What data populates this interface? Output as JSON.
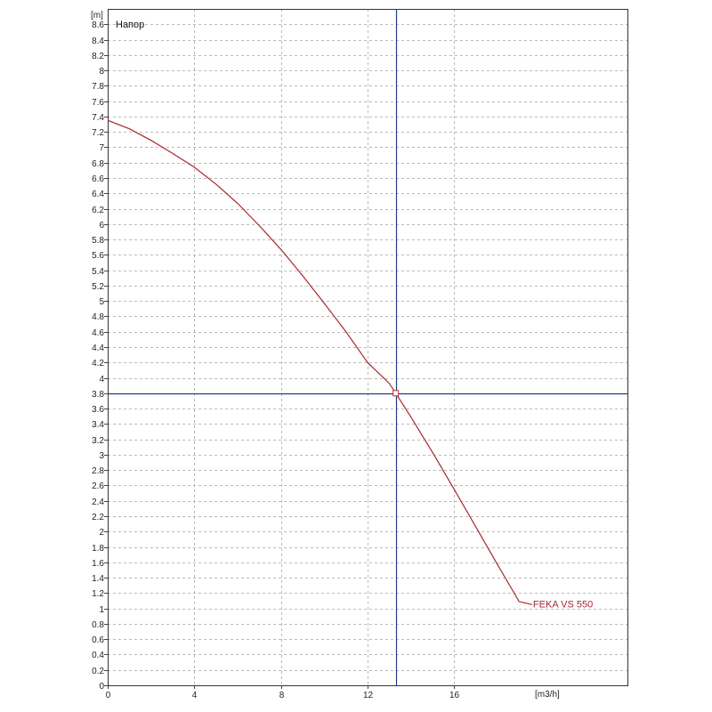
{
  "chart_data": {
    "type": "line",
    "title": "Напор",
    "ylabel": "[m]",
    "xlabel": "[m3/h]",
    "xlim": [
      0,
      24
    ],
    "ylim": [
      0,
      8.8
    ],
    "x_ticks": [
      0,
      4,
      8,
      12,
      16
    ],
    "x_tick_labels": [
      "0",
      "4",
      "8",
      "12",
      "16"
    ],
    "y_ticks": [
      0,
      0.2,
      0.4,
      0.6,
      0.8,
      1,
      1.2,
      1.4,
      1.6,
      1.8,
      2,
      2.2,
      2.4,
      2.6,
      2.8,
      3,
      3.2,
      3.4,
      3.6,
      3.8,
      4,
      4.2,
      4.4,
      4.6,
      4.8,
      5,
      5.2,
      5.4,
      5.6,
      5.8,
      6,
      6.2,
      6.4,
      6.6,
      6.8,
      7,
      7.2,
      7.4,
      7.6,
      7.8,
      8,
      8.2,
      8.4,
      8.6
    ],
    "y_tick_labels": [
      "0",
      "0.2",
      "0.4",
      "0.6",
      "0.8",
      "1",
      "1.2",
      "1.4",
      "1.6",
      "1.8",
      "2",
      "2.2",
      "2.4",
      "2.6",
      "2.8",
      "3",
      "3.2",
      "3.4",
      "3.6",
      "3.8",
      "4",
      "4.2",
      "4.4",
      "4.6",
      "4.8",
      "5",
      "5.2",
      "5.4",
      "5.6",
      "5.8",
      "6",
      "6.2",
      "6.4",
      "6.6",
      "6.8",
      "7",
      "7.2",
      "7.4",
      "7.6",
      "7.8",
      "8",
      "8.2",
      "8.4",
      "8.6"
    ],
    "grid": true,
    "series": [
      {
        "name": "FEKA VS 550",
        "color": "#a8272d",
        "x": [
          0,
          1,
          2,
          3,
          4,
          5,
          6,
          7,
          8,
          9,
          10,
          11,
          12,
          13,
          13.3,
          14,
          15,
          16,
          17,
          18,
          19,
          19.6
        ],
        "y": [
          7.35,
          7.24,
          7.09,
          6.92,
          6.74,
          6.52,
          6.27,
          5.98,
          5.67,
          5.33,
          4.97,
          4.6,
          4.2,
          3.93,
          3.8,
          3.49,
          3.03,
          2.55,
          2.06,
          1.57,
          1.09,
          1.05
        ]
      }
    ],
    "crosshair": {
      "x": 13.3,
      "y": 3.8,
      "color": "#1f3b8c"
    },
    "marker": {
      "x": 13.3,
      "y": 3.8
    }
  }
}
